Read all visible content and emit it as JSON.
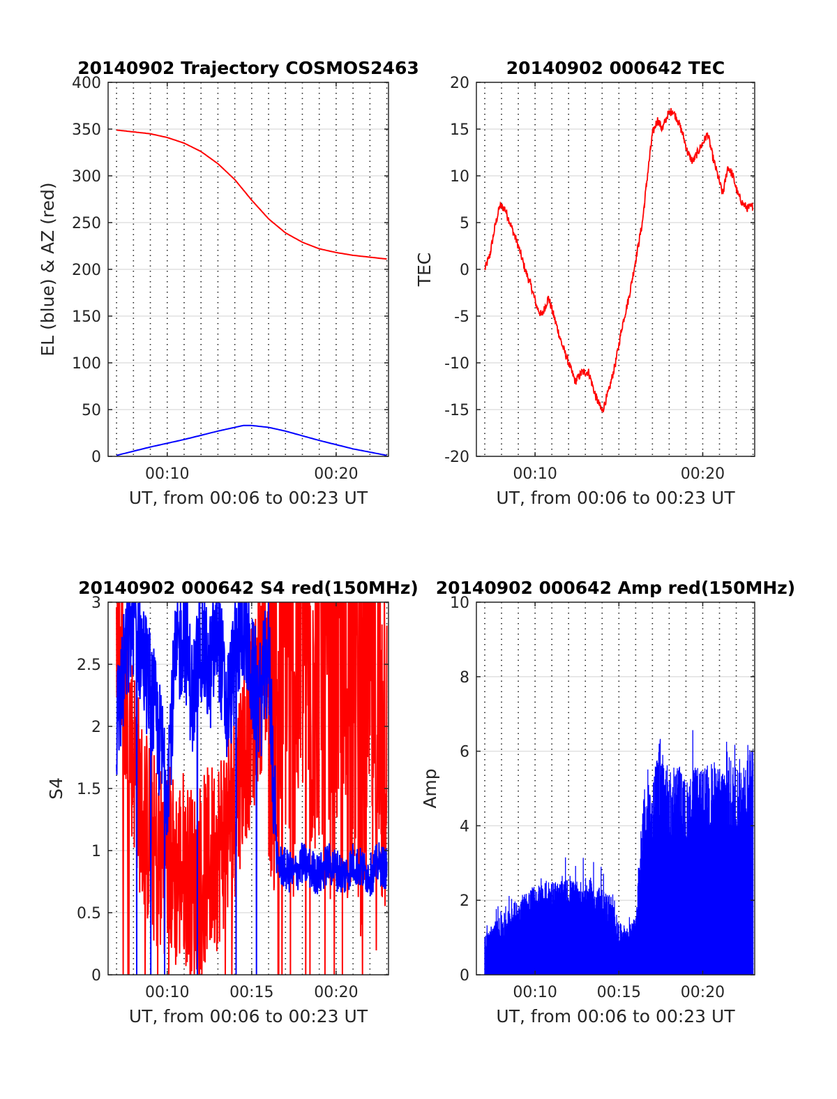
{
  "chart_data": [
    {
      "type": "line",
      "title": "20140902 Trajectory COSMOS2463",
      "xlabel": "UT, from 00:06 to 00:23 UT",
      "ylabel": "EL (blue) & AZ (red)",
      "xlim": [
        6.5,
        23.1
      ],
      "ylim": [
        0,
        400
      ],
      "xticks": [
        10,
        20
      ],
      "xtick_labels": [
        "00:10",
        "00:20"
      ],
      "yticks": [
        0,
        50,
        100,
        150,
        200,
        250,
        300,
        350,
        400
      ],
      "ytick_labels": [
        "0",
        "50",
        "100",
        "150",
        "200",
        "250",
        "300",
        "350",
        "400"
      ],
      "grid": "y-major solid, x-minor dotted",
      "series": [
        {
          "color": "#ff0000",
          "x": [
            7,
            9,
            10,
            11,
            12,
            13,
            14,
            15,
            16,
            17,
            18,
            19,
            20,
            21,
            22,
            23
          ],
          "values": [
            349,
            345,
            341,
            335,
            326,
            313,
            296,
            274,
            254,
            239,
            229,
            222,
            218,
            215,
            213,
            211
          ]
        },
        {
          "color": "#0000ff",
          "x": [
            7,
            9,
            11,
            13,
            14.5,
            15,
            16,
            17,
            19,
            21,
            23
          ],
          "values": [
            1,
            10,
            18,
            27,
            33,
            33,
            31,
            27,
            17,
            8,
            1
          ]
        }
      ]
    },
    {
      "type": "line",
      "title": "20140902 000642 TEC",
      "xlabel": "UT, from 00:06 to 00:23 UT",
      "ylabel": "TEC",
      "xlim": [
        6.5,
        23.1
      ],
      "ylim": [
        -20,
        20
      ],
      "xticks": [
        10,
        20
      ],
      "xtick_labels": [
        "00:10",
        "00:20"
      ],
      "yticks": [
        -20,
        -15,
        -10,
        -5,
        0,
        5,
        10,
        15,
        20
      ],
      "ytick_labels": [
        "-20",
        "-15",
        "-10",
        "-5",
        "0",
        "5",
        "10",
        "15",
        "20"
      ],
      "grid": "y-major solid, x-minor dotted",
      "series": [
        {
          "color": "#ff0000",
          "x": [
            7.0,
            7.3,
            7.6,
            7.9,
            8.2,
            8.6,
            9.0,
            9.4,
            9.8,
            10.1,
            10.4,
            10.8,
            11.2,
            11.6,
            12.0,
            12.4,
            12.8,
            13.2,
            13.6,
            14.0,
            14.4,
            14.8,
            15.2,
            15.6,
            16.0,
            16.4,
            16.7,
            17.0,
            17.3,
            17.6,
            17.9,
            18.2,
            18.5,
            18.8,
            19.1,
            19.4,
            19.7,
            20.0,
            20.3,
            20.6,
            20.9,
            21.2,
            21.5,
            21.8,
            22.1,
            22.4,
            22.7,
            23.0
          ],
          "values": [
            0,
            1.5,
            4.5,
            6.8,
            6.5,
            4.5,
            2.5,
            0,
            -2,
            -4,
            -5,
            -3,
            -5.5,
            -8,
            -10,
            -12,
            -11,
            -11,
            -13.5,
            -15.2,
            -13,
            -10,
            -6,
            -3,
            1,
            5,
            10,
            14.5,
            16,
            15,
            16.5,
            17,
            16,
            14.5,
            12.5,
            11.5,
            12.5,
            13.5,
            14.5,
            12,
            10,
            8,
            11,
            10,
            8,
            7,
            6.5,
            6.8
          ]
        }
      ]
    },
    {
      "type": "line",
      "title": "20140902 000642 S4 red(150MHz)",
      "xlabel": "UT, from 00:06 to 00:23 UT",
      "ylabel": "S4",
      "xlim": [
        6.5,
        23.1
      ],
      "ylim": [
        0,
        3
      ],
      "xticks": [
        10,
        15,
        20
      ],
      "xtick_labels": [
        "00:10",
        "00:15",
        "00:20"
      ],
      "yticks": [
        0,
        0.5,
        1,
        1.5,
        2,
        2.5,
        3
      ],
      "ytick_labels": [
        "0",
        "0.5",
        "1",
        "1.5",
        "2",
        "2.5",
        "3"
      ],
      "grid": "y-major solid, x-minor dotted",
      "series": [
        {
          "color": "#ff0000",
          "x": [
            7.0,
            7.5,
            8.0,
            8.5,
            9.0,
            9.5,
            10.0,
            10.5,
            11.0,
            11.5,
            12.0,
            12.5,
            13.0,
            13.5,
            14.0,
            14.5,
            15.0,
            15.5,
            16.0,
            16.5,
            17.0,
            17.5,
            18.0,
            18.5,
            19.0,
            19.5,
            20.0,
            20.5,
            21.0,
            21.5,
            22.0,
            22.5,
            23.0
          ],
          "values": [
            3,
            2.2,
            1.8,
            1.3,
            1.1,
            0.9,
            1.0,
            0.8,
            0.9,
            0.7,
            0.8,
            0.9,
            1.0,
            1.2,
            1.4,
            1.8,
            2.0,
            2.4,
            2.6,
            2.2,
            2.8,
            2.3,
            3.0,
            2.5,
            2.8,
            2.2,
            2.7,
            2.1,
            2.6,
            2.0,
            2.4,
            1.8,
            2.2
          ]
        },
        {
          "color": "#0000ff",
          "x": [
            7.0,
            7.5,
            8.0,
            8.5,
            9.0,
            9.5,
            10.0,
            10.5,
            11.0,
            11.5,
            12.0,
            12.5,
            13.0,
            13.5,
            14.0,
            14.5,
            15.0,
            15.5,
            16.0,
            16.5,
            17.0,
            17.5,
            18.0,
            18.5,
            19.0,
            19.5,
            20.0,
            20.5,
            21.0,
            21.5,
            22.0,
            22.5,
            23.0
          ],
          "values": [
            2.0,
            2.5,
            2.9,
            2.6,
            2.3,
            1.9,
            1.6,
            2.5,
            2.8,
            2.2,
            2.7,
            2.4,
            2.8,
            2.1,
            2.5,
            2.9,
            2.4,
            2.2,
            2.6,
            0.9,
            0.85,
            0.8,
            0.9,
            0.85,
            0.8,
            0.9,
            0.85,
            0.8,
            0.9,
            0.85,
            0.8,
            0.9,
            0.85
          ]
        }
      ]
    },
    {
      "type": "area",
      "title": "20140902 000642 Amp red(150MHz)",
      "xlabel": "UT, from 00:06 to 00:23 UT",
      "ylabel": "Amp",
      "xlim": [
        6.5,
        23.1
      ],
      "ylim": [
        0,
        10
      ],
      "xticks": [
        10,
        15,
        20
      ],
      "xtick_labels": [
        "00:10",
        "00:15",
        "00:20"
      ],
      "yticks": [
        0,
        2,
        4,
        6,
        8,
        10
      ],
      "ytick_labels": [
        "0",
        "2",
        "4",
        "6",
        "8",
        "10"
      ],
      "grid": "y-major solid, x-minor dotted",
      "series": [
        {
          "color": "#0000ff",
          "x": [
            7.0,
            7.5,
            8.0,
            8.5,
            9.0,
            9.5,
            10.0,
            10.5,
            11.0,
            11.5,
            12.0,
            12.5,
            13.0,
            13.5,
            14.0,
            14.5,
            15.0,
            15.5,
            16.0,
            16.5,
            17.0,
            17.5,
            18.0,
            18.5,
            19.0,
            19.5,
            20.0,
            20.5,
            21.0,
            21.5,
            22.0,
            22.5,
            23.0
          ],
          "values": [
            1.1,
            1.4,
            1.6,
            1.8,
            2.1,
            2.3,
            2.4,
            2.5,
            2.6,
            2.5,
            2.6,
            2.5,
            2.6,
            2.5,
            2.3,
            2.2,
            1.4,
            1.3,
            1.5,
            5.0,
            5.2,
            6.5,
            5.4,
            5.8,
            5.2,
            5.6,
            5.5,
            5.8,
            5.6,
            5.9,
            5.7,
            6.0,
            6.2
          ]
        }
      ]
    }
  ]
}
